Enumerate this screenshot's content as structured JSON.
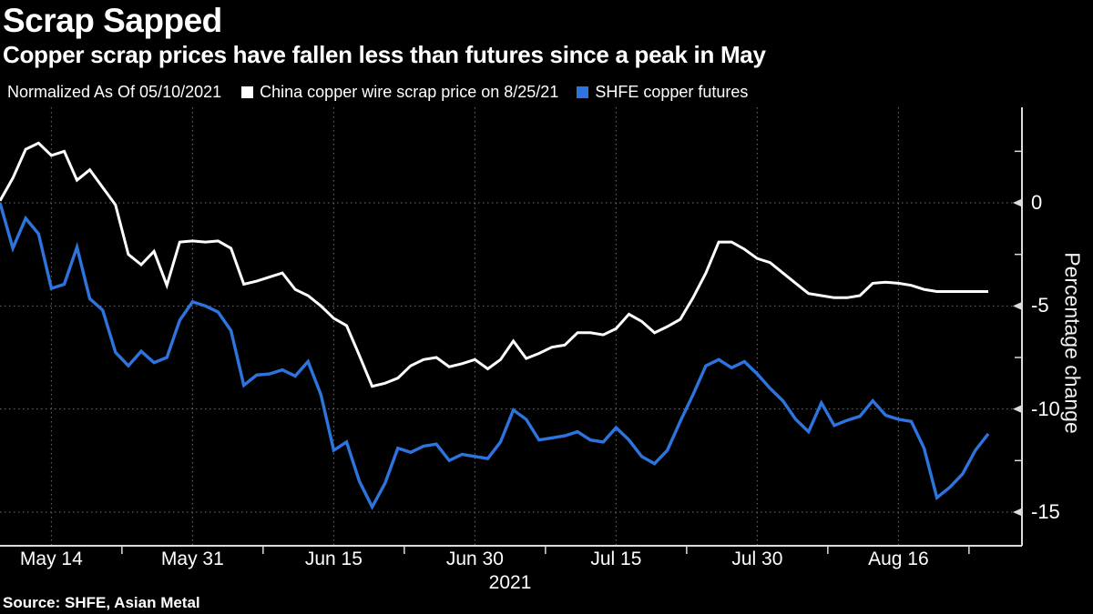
{
  "header": {
    "title": "Scrap Sapped",
    "subtitle": "Copper scrap prices have fallen less than futures since a peak in May"
  },
  "legend": {
    "note": "Normalized As Of 05/10/2021",
    "series": [
      {
        "label": "China copper wire scrap price on 8/25/21",
        "color": "#ffffff"
      },
      {
        "label": "SHFE copper futures",
        "color": "#2d74df"
      }
    ]
  },
  "chart_data": {
    "type": "line",
    "title": "Scrap Sapped",
    "subtitle": "Copper scrap prices have fallen less than futures since a peak in May",
    "normalized_as_of": "05/10/2021",
    "x_axis": {
      "unit": "trading days from 05/10/2021 to 08/25/2021",
      "tick_labels": [
        "May 14",
        "May 31",
        "Jun 15",
        "Jun 30",
        "Jul 15",
        "Jul 30",
        "Aug 16"
      ],
      "tick_day_indices": [
        4,
        15,
        26,
        37,
        48,
        59,
        70
      ],
      "total_points": 78,
      "year_label": "2021",
      "grid": "dotted-vertical-at-ticks"
    },
    "y_axis": {
      "label": "Percentage change",
      "side": "right",
      "ticks": [
        0,
        -5,
        -10,
        -15
      ],
      "minor_ticks": [
        2.5,
        -2.5,
        -7.5,
        -12.5
      ],
      "range": [
        -16.6,
        4.6
      ],
      "grid": "dotted-horizontal-at-ticks"
    },
    "series": [
      {
        "name": "China copper wire scrap price on 8/25/21",
        "color": "#ffffff",
        "values": [
          0.1,
          1.2,
          2.6,
          2.9,
          2.3,
          2.5,
          1.1,
          1.6,
          0.75,
          -0.1,
          -2.5,
          -3.0,
          -2.35,
          -4.0,
          -1.9,
          -1.85,
          -1.9,
          -1.85,
          -2.2,
          -3.95,
          -3.8,
          -3.6,
          -3.4,
          -4.2,
          -4.5,
          -5.0,
          -5.6,
          -5.95,
          -7.4,
          -8.9,
          -8.75,
          -8.5,
          -7.9,
          -7.6,
          -7.5,
          -7.95,
          -7.8,
          -7.6,
          -8.05,
          -7.6,
          -6.7,
          -7.55,
          -7.3,
          -7.0,
          -6.9,
          -6.3,
          -6.3,
          -6.4,
          -6.1,
          -5.4,
          -5.75,
          -6.3,
          -6.0,
          -5.65,
          -4.6,
          -3.4,
          -1.9,
          -1.9,
          -2.25,
          -2.7,
          -2.9,
          -3.4,
          -3.9,
          -4.4,
          -4.5,
          -4.6,
          -4.6,
          -4.5,
          -3.9,
          -3.85,
          -3.9,
          -4.0,
          -4.2,
          -4.3,
          -4.3,
          -4.3,
          -4.3,
          -4.3
        ]
      },
      {
        "name": "SHFE copper futures",
        "color": "#2d74df",
        "values": [
          0.0,
          -2.2,
          -0.75,
          -1.5,
          -4.15,
          -3.95,
          -2.15,
          -4.65,
          -5.2,
          -7.25,
          -7.9,
          -7.2,
          -7.75,
          -7.5,
          -5.7,
          -4.8,
          -5.0,
          -5.3,
          -6.2,
          -8.85,
          -8.35,
          -8.3,
          -8.1,
          -8.4,
          -7.7,
          -9.3,
          -12.0,
          -11.6,
          -13.5,
          -14.75,
          -13.6,
          -11.9,
          -12.1,
          -11.8,
          -11.7,
          -12.5,
          -12.2,
          -12.3,
          -12.4,
          -11.6,
          -10.05,
          -10.5,
          -11.5,
          -11.4,
          -11.3,
          -11.1,
          -11.5,
          -11.6,
          -10.9,
          -11.5,
          -12.3,
          -12.65,
          -12.0,
          -10.6,
          -9.3,
          -7.9,
          -7.6,
          -8.0,
          -7.7,
          -8.3,
          -9.0,
          -9.6,
          -10.5,
          -11.1,
          -9.7,
          -10.8,
          -10.55,
          -10.35,
          -9.6,
          -10.3,
          -10.5,
          -10.6,
          -11.9,
          -14.3,
          -13.8,
          -13.15,
          -12.0,
          -11.2
        ]
      }
    ],
    "legend_position": "top",
    "colors": {
      "background": "#000000",
      "grid": "#6e6e6e",
      "axis": "#dcdcdc",
      "text": "#ffffff"
    }
  },
  "source": {
    "text": "Source: SHFE, Asian Metal"
  }
}
